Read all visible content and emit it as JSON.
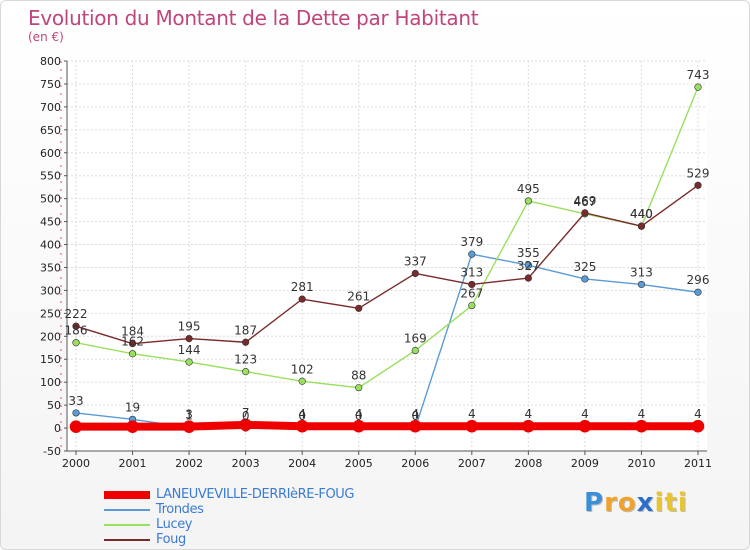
{
  "title": "Evolution du Montant de la Dette par Habitant",
  "subtitle": "(en €)",
  "logo": {
    "letters": [
      "P",
      "r",
      "o",
      "x",
      "i",
      "t",
      "i"
    ],
    "colors": [
      "#3b8fd6",
      "#f0a22a",
      "#f0a22a",
      "#2a6fc9",
      "#e8c52e",
      "#e8c52e",
      "#e8c52e"
    ]
  },
  "chart_data": {
    "type": "line",
    "title": "Evolution du Montant de la Dette par Habitant",
    "ylabel": "(en €)",
    "xlabel": "",
    "ylim": [
      -50,
      800
    ],
    "yticks": [
      -50,
      0,
      50,
      100,
      150,
      200,
      250,
      300,
      350,
      400,
      450,
      500,
      550,
      600,
      650,
      700,
      750,
      800
    ],
    "x": [
      "2000",
      "2001",
      "2002",
      "2003",
      "2004",
      "2005",
      "2006",
      "2007",
      "2008",
      "2009",
      "2010",
      "2011"
    ],
    "grid": true,
    "legend_position": "bottom-left",
    "series": [
      {
        "name": "LANEUVEVILLE-DERRIèRE-FOUG",
        "color": "#ee0000",
        "width": 8,
        "values": [
          3,
          3,
          3,
          7,
          4,
          4,
          4,
          4,
          4,
          4,
          4,
          4
        ],
        "labels": [
          "",
          "",
          "3",
          "7",
          "4",
          "4",
          "4",
          "4",
          "4",
          "4",
          "4",
          "4"
        ]
      },
      {
        "name": "Trondes",
        "color": "#5b9bd5",
        "width": 1.4,
        "values": [
          33,
          19,
          1,
          0,
          0,
          0,
          0,
          379,
          355,
          325,
          313,
          296
        ],
        "labels": [
          "33",
          "19",
          "1",
          "0",
          "0",
          "0",
          "0",
          "379",
          "355",
          "325",
          "313",
          "296"
        ]
      },
      {
        "name": "Lucey",
        "color": "#99e05e",
        "width": 1.4,
        "values": [
          186,
          162,
          144,
          123,
          102,
          88,
          169,
          267,
          495,
          467,
          440,
          743
        ],
        "labels": [
          "186",
          "162",
          "144",
          "123",
          "102",
          "88",
          "169",
          "267",
          "495",
          "467",
          "440",
          "743"
        ]
      },
      {
        "name": "Foug",
        "color": "#7a2a2a",
        "width": 1.4,
        "values": [
          222,
          184,
          195,
          187,
          281,
          261,
          337,
          313,
          327,
          469,
          440,
          529
        ],
        "labels": [
          "222",
          "184",
          "195",
          "187",
          "281",
          "261",
          "337",
          "313",
          "327",
          "469",
          "440",
          "529"
        ]
      }
    ]
  }
}
